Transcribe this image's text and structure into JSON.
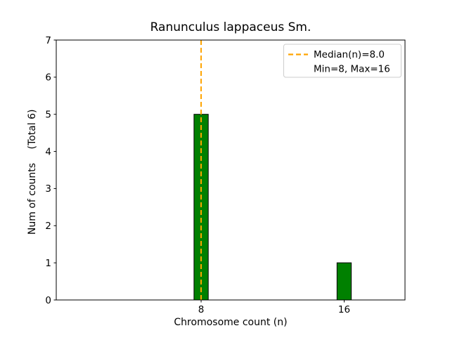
{
  "chart_data": {
    "type": "bar",
    "title": "Ranunculus lappaceus Sm.",
    "xlabel": "Chromosome count (n)",
    "ylabel": "Num of counts",
    "ylabel_annotation": "(Total 6)",
    "x": [
      8,
      16
    ],
    "values": [
      5,
      1
    ],
    "bar_width": 0.8,
    "xlim": [
      -0.1,
      19.4
    ],
    "ylim": [
      0,
      7
    ],
    "yticks": [
      "0",
      "1",
      "2",
      "3",
      "4",
      "5",
      "6",
      "7"
    ],
    "xticks": [
      "8",
      "16"
    ],
    "xtick_values": [
      8,
      16
    ],
    "bar_color": "#008000",
    "bar_edge_color": "#000000",
    "grid": false,
    "median_line": {
      "x": 8.0,
      "color": "#FFA500",
      "style": "dashed"
    },
    "legend": {
      "position": "upper right",
      "entries": [
        {
          "label": "Median(n)=8.0",
          "handle": "dashed-orange-line"
        },
        {
          "label": "Min=8, Max=16",
          "handle": "none"
        }
      ]
    }
  }
}
